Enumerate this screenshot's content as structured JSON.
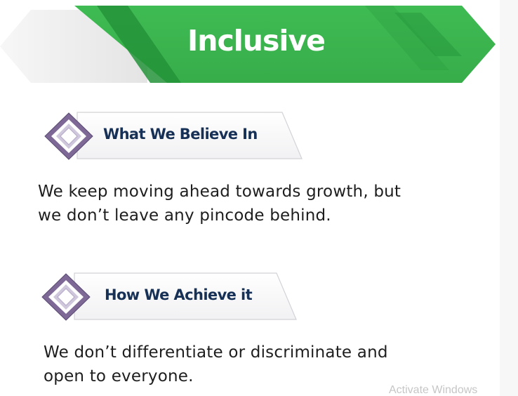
{
  "banner": {
    "title": "Inclusive",
    "colors": {
      "green": "#3cb54f",
      "green_dark": "#24933a",
      "arrow_light": "#f0f0f0"
    }
  },
  "sections": [
    {
      "heading": "What We Believe In",
      "body_lines": [
        "We keep moving ahead towards growth, but",
        "we don’t leave any pincode behind."
      ]
    },
    {
      "heading": "How We Achieve it",
      "body_lines": [
        "We don’t differentiate or discriminate and",
        "open to everyone."
      ]
    }
  ],
  "icons": {
    "section_marker": "diamond-icon"
  },
  "colors": {
    "heading_text": "#173055",
    "diamond_purple": "#7d6896"
  },
  "watermark": {
    "text": "Activate Windows"
  }
}
